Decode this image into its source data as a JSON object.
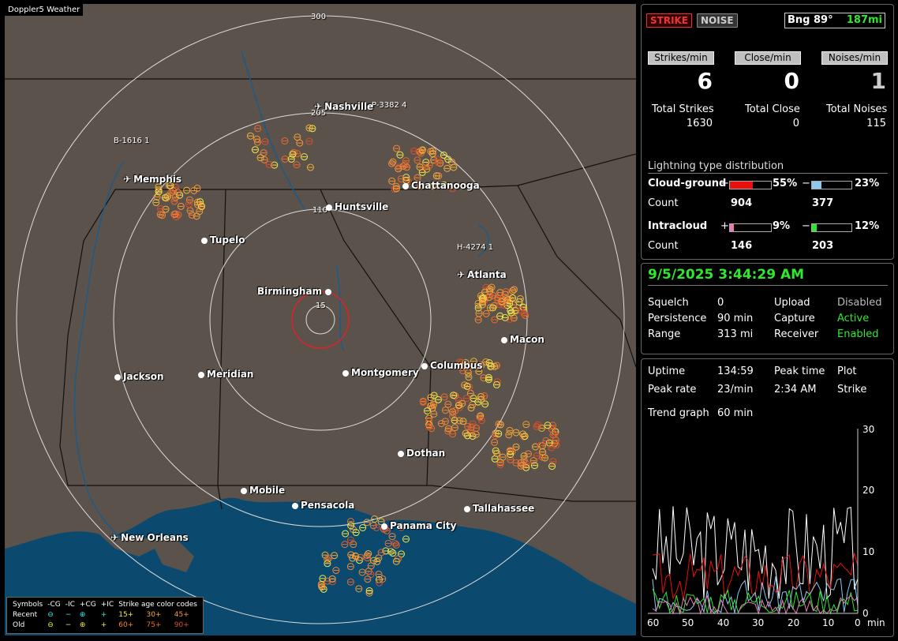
{
  "map": {
    "title": "Doppler5 Weather",
    "ring_labels": [
      "300",
      "205",
      "110",
      "15"
    ],
    "cities": [
      {
        "name": "Nashville",
        "kind": "airport"
      },
      {
        "name": "Memphis",
        "kind": "airport"
      },
      {
        "name": "Chattanooga",
        "kind": "city"
      },
      {
        "name": "Huntsville",
        "kind": "city"
      },
      {
        "name": "Tupelo",
        "kind": "city"
      },
      {
        "name": "Atlanta",
        "kind": "airport"
      },
      {
        "name": "Birmingham",
        "kind": "city"
      },
      {
        "name": "Macon",
        "kind": "city"
      },
      {
        "name": "Jackson",
        "kind": "city"
      },
      {
        "name": "Meridian",
        "kind": "city"
      },
      {
        "name": "Montgomery",
        "kind": "city"
      },
      {
        "name": "Columbus",
        "kind": "city"
      },
      {
        "name": "Dothan",
        "kind": "city"
      },
      {
        "name": "Mobile",
        "kind": "city"
      },
      {
        "name": "Pensacola",
        "kind": "city"
      },
      {
        "name": "Tallahassee",
        "kind": "city"
      },
      {
        "name": "Panama City",
        "kind": "city"
      },
      {
        "name": "New Orleans",
        "kind": "airport"
      }
    ],
    "stations": [
      "P-3382 4",
      "B-1616 1",
      "H-4274 1"
    ],
    "legend": {
      "symbols_label": "Symbols",
      "cols": [
        "-CG",
        "-IC",
        "+CG",
        "+IC"
      ],
      "age_label": "Strike age color codes",
      "recent_label": "Recent",
      "old_label": "Old",
      "recent_ages": [
        "15+",
        "30+",
        "45+"
      ],
      "old_ages": [
        "60+",
        "75+",
        "90+"
      ]
    }
  },
  "counts_panel": {
    "strike_btn": "STRIKE",
    "noise_btn": "NOISE",
    "bearing": "Bng 89°",
    "distance": "187mi",
    "headers": [
      "Strikes/min",
      "Close/min",
      "Noises/min"
    ],
    "big_values": [
      "6",
      "0",
      "1"
    ],
    "total_labels": [
      "Total Strikes",
      "Total Close",
      "Total Noises"
    ],
    "total_values": [
      "1630",
      "0",
      "115"
    ],
    "distribution_title": "Lightning type distribution",
    "cloud_ground_label": "Cloud-ground",
    "intracloud_label": "Intracloud",
    "count_label": "Count",
    "plus_sign": "+",
    "minus_sign": "−",
    "cg_pos_pct": "55%",
    "cg_neg_pct": "23%",
    "cg_pos_count": "904",
    "cg_neg_count": "377",
    "ic_pos_pct": "9%",
    "ic_neg_pct": "12%",
    "ic_pos_count": "146",
    "ic_neg_count": "203",
    "bar_fractions": {
      "cg_pos": 0.55,
      "cg_neg": 0.23,
      "ic_pos": 0.09,
      "ic_neg": 0.12
    }
  },
  "status_panel": {
    "datetime": "9/5/2025 3:44:29 AM",
    "rows": [
      {
        "label": "Squelch",
        "value": "0",
        "label2": "Upload",
        "value2": "Disabled"
      },
      {
        "label": "Persistence",
        "value": "90 min",
        "label2": "Capture",
        "value2": "Active"
      },
      {
        "label": "Range",
        "value": "313 mi",
        "label2": "Receiver",
        "value2": "Enabled"
      }
    ]
  },
  "trend_panel": {
    "uptime_label": "Uptime",
    "uptime": "134:59",
    "peak_time_label": "Peak time",
    "plot_label": "Plot",
    "peak_rate_label": "Peak rate",
    "peak_rate": "23/min",
    "peak_time": "2:34 AM",
    "plot_value": "Strike",
    "trend_label": "Trend graph",
    "trend_value": "60 min",
    "y_ticks": [
      "30",
      "20",
      "10",
      "0"
    ],
    "x_ticks": [
      "60",
      "50",
      "40",
      "30",
      "20",
      "10",
      "0"
    ],
    "x_unit": "min"
  },
  "colors": {
    "map_land": "#5b524b",
    "water": "#0b4a6e",
    "strike_red": "#d9252a",
    "green_active": "#2ee82e"
  }
}
